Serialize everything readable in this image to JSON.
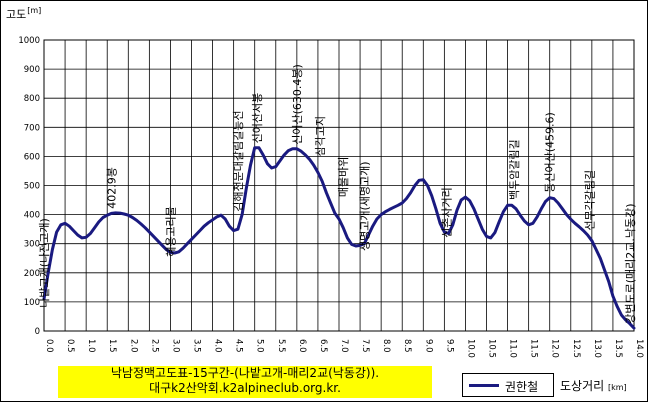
{
  "chart_data": {
    "type": "line",
    "title_lines": [
      "낙남정맥고도표-15구간-(나밭고개-매리2교(낙동강)).",
      "대구k2산악회.k2alpineclub.org.kr."
    ],
    "ylabel": "고도",
    "ylabel_unit": "[m]",
    "xlabel": "도상거리",
    "xlabel_unit": "[km]",
    "ylim": [
      0,
      1000
    ],
    "xlim": [
      0,
      14
    ],
    "y_ticks": [
      0,
      100,
      200,
      300,
      400,
      500,
      600,
      700,
      800,
      900,
      1000
    ],
    "x_ticks": [
      "0.0",
      "0.5",
      "1.0",
      "1.5",
      "2.0",
      "2.5",
      "3.0",
      "3.5",
      "4.0",
      "4.5",
      "5.0",
      "5.5",
      "6.0",
      "6.5",
      "7.0",
      "7.5",
      "8.0",
      "8.5",
      "9.0",
      "9.5",
      "10.0",
      "10.5",
      "11.0",
      "11.5",
      "12.0",
      "12.5",
      "13.0",
      "13.5",
      "14.0"
    ],
    "grid": true,
    "legend_position": "bottom",
    "series": [
      {
        "name": "권한철",
        "color": "#1a1a80",
        "x": [
          0.0,
          0.1,
          0.2,
          0.3,
          0.4,
          0.5,
          0.6,
          0.7,
          0.8,
          0.9,
          1.0,
          1.1,
          1.2,
          1.3,
          1.4,
          1.5,
          1.6,
          1.7,
          1.8,
          1.9,
          2.0,
          2.1,
          2.2,
          2.3,
          2.4,
          2.5,
          2.6,
          2.7,
          2.8,
          2.9,
          3.0,
          3.1,
          3.2,
          3.3,
          3.4,
          3.5,
          3.6,
          3.7,
          3.8,
          3.9,
          4.0,
          4.1,
          4.2,
          4.3,
          4.4,
          4.5,
          4.6,
          4.7,
          4.8,
          4.9,
          5.0,
          5.1,
          5.2,
          5.3,
          5.4,
          5.5,
          5.6,
          5.7,
          5.8,
          5.9,
          6.0,
          6.1,
          6.2,
          6.3,
          6.4,
          6.5,
          6.6,
          6.7,
          6.8,
          6.9,
          7.0,
          7.1,
          7.2,
          7.3,
          7.4,
          7.5,
          7.6,
          7.7,
          7.8,
          7.9,
          8.0,
          8.1,
          8.2,
          8.3,
          8.4,
          8.5,
          8.6,
          8.7,
          8.8,
          8.9,
          9.0,
          9.1,
          9.2,
          9.3,
          9.4,
          9.5,
          9.6,
          9.7,
          9.8,
          9.9,
          10.0,
          10.1,
          10.2,
          10.3,
          10.4,
          10.5,
          10.6,
          10.7,
          10.8,
          10.9,
          11.0,
          11.1,
          11.2,
          11.3,
          11.4,
          11.5,
          11.6,
          11.7,
          11.8,
          11.9,
          12.0,
          12.1,
          12.2,
          12.3,
          12.4,
          12.5,
          12.6,
          12.7,
          12.8,
          12.9,
          13.0,
          13.1,
          13.2,
          13.3,
          13.4,
          13.5,
          13.6,
          13.7,
          13.8,
          13.9,
          14.0
        ],
        "y": [
          110,
          200,
          280,
          340,
          365,
          370,
          360,
          345,
          330,
          320,
          322,
          335,
          355,
          375,
          390,
          398,
          404,
          406,
          405,
          402,
          398,
          390,
          380,
          368,
          355,
          340,
          325,
          310,
          295,
          280,
          270,
          268,
          272,
          285,
          300,
          315,
          330,
          345,
          360,
          372,
          382,
          392,
          398,
          385,
          360,
          345,
          350,
          400,
          490,
          570,
          630,
          630,
          605,
          575,
          560,
          565,
          585,
          605,
          620,
          626,
          626,
          618,
          605,
          590,
          570,
          545,
          515,
          475,
          440,
          405,
          385,
          355,
          320,
          298,
          292,
          294,
          300,
          330,
          360,
          385,
          400,
          410,
          418,
          425,
          432,
          440,
          455,
          475,
          500,
          518,
          520,
          500,
          465,
          420,
          370,
          340,
          335,
          365,
          415,
          450,
          460,
          448,
          420,
          385,
          350,
          325,
          320,
          338,
          375,
          410,
          432,
          432,
          420,
          398,
          378,
          365,
          370,
          392,
          420,
          445,
          458,
          455,
          440,
          420,
          400,
          384,
          370,
          358,
          345,
          330,
          310,
          280,
          250,
          210,
          170,
          120,
          85,
          55,
          38,
          25,
          10
        ]
      }
    ]
  },
  "annotations": [
    {
      "text": "나밭고개(나전고개)",
      "x": 0.0,
      "y": 80
    },
    {
      "text": "402.9봉",
      "x": 1.6,
      "y": 420
    },
    {
      "text": "혜용고리물",
      "x": 3.0,
      "y": 255
    },
    {
      "text": "김해천문대갈림길능선",
      "x": 4.6,
      "y": 410
    },
    {
      "text": "신어산서봉",
      "x": 5.05,
      "y": 645
    },
    {
      "text": "신어산(630.4봉)",
      "x": 6.0,
      "y": 640
    },
    {
      "text": "삼각고지",
      "x": 6.55,
      "y": 600
    },
    {
      "text": "매물바위",
      "x": 7.1,
      "y": 460
    },
    {
      "text": "생명고개(새명고개)",
      "x": 7.6,
      "y": 275
    },
    {
      "text": "신촌사거리",
      "x": 9.55,
      "y": 320
    },
    {
      "text": "백두암갈림길",
      "x": 11.15,
      "y": 450
    },
    {
      "text": "동신어산(459.6)",
      "x": 12.0,
      "y": 475
    },
    {
      "text": "선무각갈림길",
      "x": 12.95,
      "y": 345
    },
    {
      "text": "강변도로(매리2교.낙동강)",
      "x": 13.9,
      "y": 25
    }
  ]
}
